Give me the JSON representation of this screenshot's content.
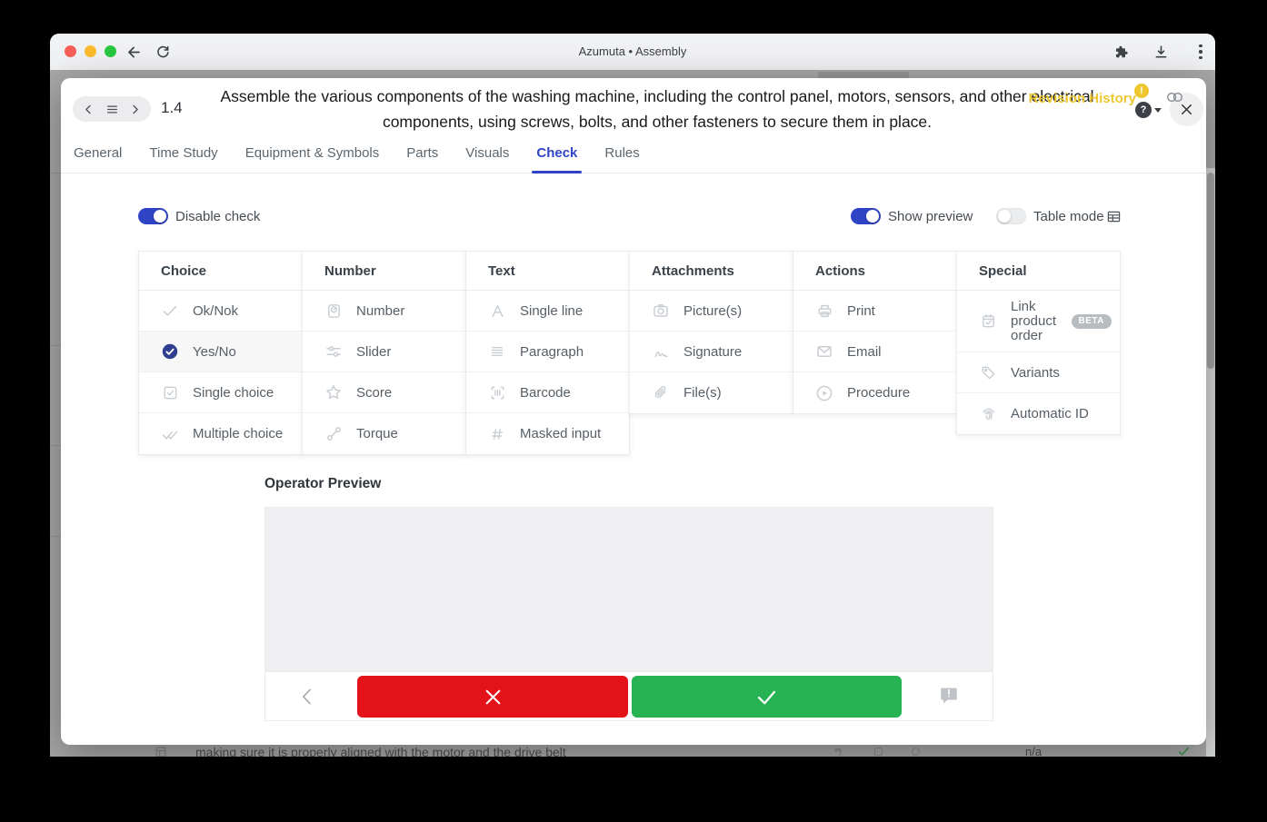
{
  "browser": {
    "title": "Azumuta • Assembly"
  },
  "header": {
    "step": "1.4",
    "title": "Assemble the various components of the washing machine, including the control panel, motors, sensors, and other electrical components, using screws, bolts, and other fasteners to secure them in place."
  },
  "tabs": [
    {
      "label": "General",
      "active": false
    },
    {
      "label": "Time Study",
      "active": false
    },
    {
      "label": "Equipment & Symbols",
      "active": false
    },
    {
      "label": "Parts",
      "active": false
    },
    {
      "label": "Visuals",
      "active": false
    },
    {
      "label": "Check",
      "active": true
    },
    {
      "label": "Rules",
      "active": false
    }
  ],
  "revision": {
    "label": "Revision History",
    "badge": "!"
  },
  "toggles": [
    {
      "id": "disable-check",
      "label": "Disable check",
      "on": true
    },
    {
      "id": "show-preview",
      "label": "Show preview",
      "on": true
    },
    {
      "id": "table-mode",
      "label": "Table mode",
      "on": false
    }
  ],
  "check_grid": {
    "columns": [
      {
        "header": "Choice",
        "items": [
          {
            "label": "Ok/Nok",
            "icon": "check-icon"
          },
          {
            "label": "Yes/No",
            "icon": "yes-no-icon",
            "selected": true
          },
          {
            "label": "Single choice",
            "icon": "checkbox-icon"
          },
          {
            "label": "Multiple choice",
            "icon": "double-check-icon"
          }
        ]
      },
      {
        "header": "Number",
        "items": [
          {
            "label": "Number",
            "icon": "scale-icon"
          },
          {
            "label": "Slider",
            "icon": "slider-icon"
          },
          {
            "label": "Score",
            "icon": "star-icon"
          },
          {
            "label": "Torque",
            "icon": "torque-icon"
          }
        ]
      },
      {
        "header": "Text",
        "items": [
          {
            "label": "Single line",
            "icon": "single-line-icon"
          },
          {
            "label": "Paragraph",
            "icon": "paragraph-icon"
          },
          {
            "label": "Barcode",
            "icon": "barcode-icon"
          },
          {
            "label": "Masked input",
            "icon": "hash-icon"
          }
        ]
      },
      {
        "header": "Attachments",
        "items": [
          {
            "label": "Picture(s)",
            "icon": "camera-icon"
          },
          {
            "label": "Signature",
            "icon": "signature-icon"
          },
          {
            "label": "File(s)",
            "icon": "paperclip-icon"
          }
        ]
      },
      {
        "header": "Actions",
        "items": [
          {
            "label": "Print",
            "icon": "printer-icon"
          },
          {
            "label": "Email",
            "icon": "email-icon"
          },
          {
            "label": "Procedure",
            "icon": "play-circle-icon"
          }
        ]
      },
      {
        "header": "Special",
        "items": [
          {
            "label": "Link product order",
            "icon": "order-check-icon",
            "badge": "BETA"
          },
          {
            "label": "Variants",
            "icon": "tag-icon"
          },
          {
            "label": "Automatic ID",
            "icon": "fingerprint-icon"
          }
        ]
      }
    ]
  },
  "preview": {
    "heading": "Operator Preview"
  },
  "background_page": {
    "partial_row_text": "making sure it is properly aligned with the motor and the drive belt",
    "partial_row_value": "n/a"
  },
  "colors": {
    "accent": "#2f43c5",
    "warning_yellow": "#eec62f",
    "nok_red": "#e41319",
    "ok_green": "#27b254",
    "selected_icon_navy": "#2f3e8f"
  }
}
